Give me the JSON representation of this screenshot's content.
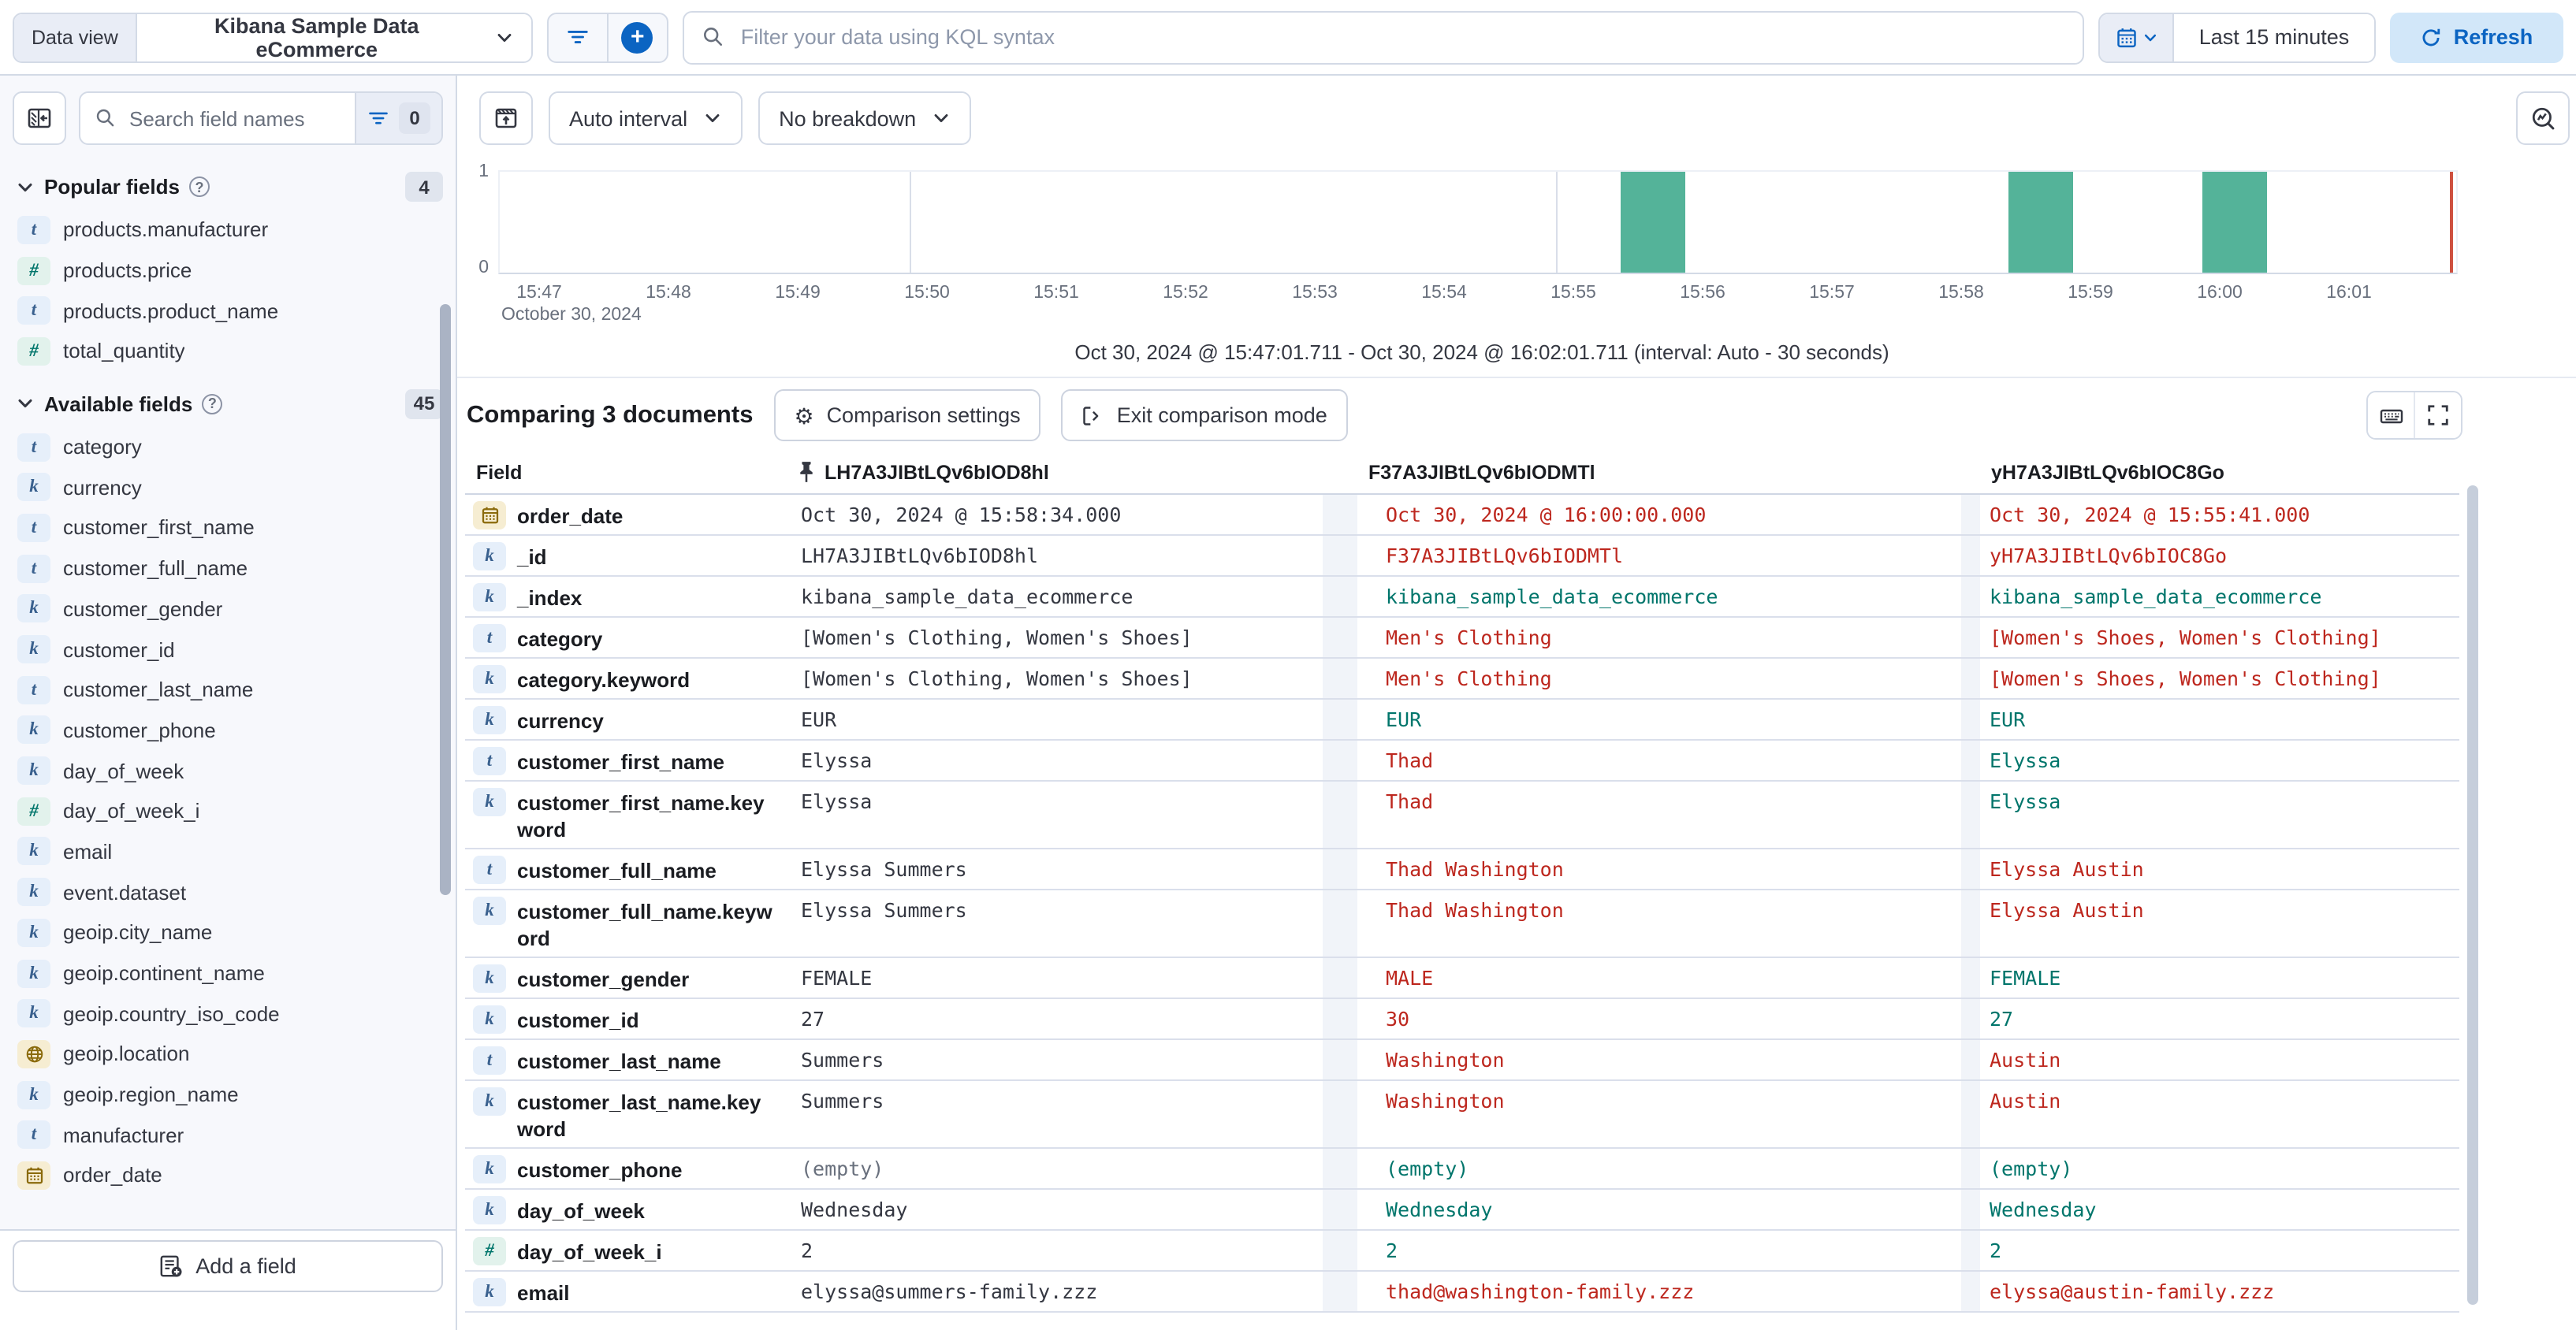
{
  "topbar": {
    "data_view_label": "Data view",
    "data_view_value": "Kibana Sample Data eCommerce",
    "kql_placeholder": "Filter your data using KQL syntax",
    "time_range": "Last 15 minutes",
    "refresh_label": "Refresh"
  },
  "sidebar": {
    "search_placeholder": "Search field names",
    "filter_count": "0",
    "popular": {
      "label": "Popular fields",
      "count": "4",
      "items": [
        {
          "name": "products.manufacturer",
          "type": "t"
        },
        {
          "name": "products.price",
          "type": "n"
        },
        {
          "name": "products.product_name",
          "type": "t"
        },
        {
          "name": "total_quantity",
          "type": "n"
        }
      ]
    },
    "available": {
      "label": "Available fields",
      "count": "45",
      "items": [
        {
          "name": "category",
          "type": "t"
        },
        {
          "name": "currency",
          "type": "k"
        },
        {
          "name": "customer_first_name",
          "type": "t"
        },
        {
          "name": "customer_full_name",
          "type": "t"
        },
        {
          "name": "customer_gender",
          "type": "k"
        },
        {
          "name": "customer_id",
          "type": "k"
        },
        {
          "name": "customer_last_name",
          "type": "t"
        },
        {
          "name": "customer_phone",
          "type": "k"
        },
        {
          "name": "day_of_week",
          "type": "k"
        },
        {
          "name": "day_of_week_i",
          "type": "n"
        },
        {
          "name": "email",
          "type": "k"
        },
        {
          "name": "event.dataset",
          "type": "k"
        },
        {
          "name": "geoip.city_name",
          "type": "k"
        },
        {
          "name": "geoip.continent_name",
          "type": "k"
        },
        {
          "name": "geoip.country_iso_code",
          "type": "k"
        },
        {
          "name": "geoip.location",
          "type": "geo"
        },
        {
          "name": "geoip.region_name",
          "type": "k"
        },
        {
          "name": "manufacturer",
          "type": "t"
        },
        {
          "name": "order_date",
          "type": "date"
        }
      ]
    },
    "add_field_label": "Add a field"
  },
  "chart": {
    "interval_label": "Auto interval",
    "breakdown_label": "No breakdown",
    "y_max": "1",
    "y_min": "0",
    "date_label": "October 30, 2024",
    "ticks": [
      "15:47",
      "15:48",
      "15:49",
      "15:50",
      "15:51",
      "15:52",
      "15:53",
      "15:54",
      "15:55",
      "15:56",
      "15:57",
      "15:58",
      "15:59",
      "16:00",
      "16:01"
    ],
    "gridline_ticks": [
      3,
      8,
      13
    ],
    "caption": "Oct 30, 2024 @ 15:47:01.711 - Oct 30, 2024 @ 16:02:01.711 (interval: Auto - 30 seconds)"
  },
  "chart_data": {
    "type": "bar",
    "x": [
      "15:55:30",
      "15:58:30",
      "16:00:00"
    ],
    "values": [
      1,
      1,
      1
    ],
    "ylim": [
      0,
      1
    ],
    "x_range": [
      "15:47:01.711",
      "16:02:01.711"
    ],
    "interval_seconds": 30,
    "bar_color": "#54b399",
    "end_marker_color": "#ce5140"
  },
  "comparison": {
    "title": "Comparing 3 documents",
    "settings_label": "Comparison settings",
    "exit_label": "Exit comparison mode"
  },
  "table": {
    "field_header": "Field",
    "doc_headers": [
      "LH7A3JIBtLQv6bIOD8hl",
      "F37A3JIBtLQv6bIODMTl",
      "yH7A3JIBtLQv6bIOC8Go"
    ],
    "colors": {
      "diff": "#bd271e",
      "match": "#00756b"
    },
    "rows": [
      {
        "field": "order_date",
        "type": "date",
        "v1": "Oct 30, 2024 @ 15:58:34.000",
        "s1": "base",
        "v2": "Oct 30, 2024 @ 16:00:00.000",
        "s2": "diff",
        "v3": "Oct 30, 2024 @ 15:55:41.000",
        "s3": "diff"
      },
      {
        "field": "_id",
        "type": "k",
        "v1": "LH7A3JIBtLQv6bIOD8hl",
        "s1": "base",
        "v2": "F37A3JIBtLQv6bIODMTl",
        "s2": "diff",
        "v3": "yH7A3JIBtLQv6bIOC8Go",
        "s3": "diff"
      },
      {
        "field": "_index",
        "type": "k",
        "v1": "kibana_sample_data_ecommerce",
        "s1": "base",
        "v2": "kibana_sample_data_ecommerce",
        "s2": "match",
        "v3": "kibana_sample_data_ecommerce",
        "s3": "match"
      },
      {
        "field": "category",
        "type": "t",
        "v1": "[Women's Clothing, Women's Shoes]",
        "s1": "base",
        "v2": "Men's Clothing",
        "s2": "diff",
        "v3": "[Women's Shoes, Women's Clothing]",
        "s3": "diff"
      },
      {
        "field": "category.keyword",
        "type": "k",
        "v1": "[Women's Clothing, Women's Shoes]",
        "s1": "base",
        "v2": "Men's Clothing",
        "s2": "diff",
        "v3": "[Women's Shoes, Women's Clothing]",
        "s3": "diff"
      },
      {
        "field": "currency",
        "type": "k",
        "v1": "EUR",
        "s1": "base",
        "v2": "EUR",
        "s2": "match",
        "v3": "EUR",
        "s3": "match"
      },
      {
        "field": "customer_first_name",
        "type": "t",
        "v1": "Elyssa",
        "s1": "base",
        "v2": "Thad",
        "s2": "diff",
        "v3": "Elyssa",
        "s3": "match"
      },
      {
        "field": "customer_first_name.keyword",
        "type": "k",
        "v1": "Elyssa",
        "s1": "base",
        "v2": "Thad",
        "s2": "diff",
        "v3": "Elyssa",
        "s3": "match"
      },
      {
        "field": "customer_full_name",
        "type": "t",
        "v1": "Elyssa Summers",
        "s1": "base",
        "v2": "Thad Washington",
        "s2": "diff",
        "v3": "Elyssa Austin",
        "s3": "diff"
      },
      {
        "field": "customer_full_name.keyword",
        "type": "k",
        "v1": "Elyssa Summers",
        "s1": "base",
        "v2": "Thad Washington",
        "s2": "diff",
        "v3": "Elyssa Austin",
        "s3": "diff"
      },
      {
        "field": "customer_gender",
        "type": "k",
        "v1": "FEMALE",
        "s1": "base",
        "v2": "MALE",
        "s2": "diff",
        "v3": "FEMALE",
        "s3": "match"
      },
      {
        "field": "customer_id",
        "type": "k",
        "v1": "27",
        "s1": "base",
        "v2": "30",
        "s2": "diff",
        "v3": "27",
        "s3": "match"
      },
      {
        "field": "customer_last_name",
        "type": "t",
        "v1": "Summers",
        "s1": "base",
        "v2": "Washington",
        "s2": "diff",
        "v3": "Austin",
        "s3": "diff"
      },
      {
        "field": "customer_last_name.keyword",
        "type": "k",
        "v1": "Summers",
        "s1": "base",
        "v2": "Washington",
        "s2": "diff",
        "v3": "Austin",
        "s3": "diff"
      },
      {
        "field": "customer_phone",
        "type": "k",
        "v1": "(empty)",
        "s1": "muted",
        "v2": "(empty)",
        "s2": "match",
        "v3": "(empty)",
        "s3": "match"
      },
      {
        "field": "day_of_week",
        "type": "k",
        "v1": "Wednesday",
        "s1": "base",
        "v2": "Wednesday",
        "s2": "match",
        "v3": "Wednesday",
        "s3": "match"
      },
      {
        "field": "day_of_week_i",
        "type": "n",
        "v1": "2",
        "s1": "base",
        "v2": "2",
        "s2": "match",
        "v3": "2",
        "s3": "match"
      },
      {
        "field": "email",
        "type": "k",
        "v1": "elyssa@summers-family.zzz",
        "s1": "base",
        "v2": "thad@washington-family.zzz",
        "s2": "diff",
        "v3": "elyssa@austin-family.zzz",
        "s3": "diff"
      }
    ]
  }
}
